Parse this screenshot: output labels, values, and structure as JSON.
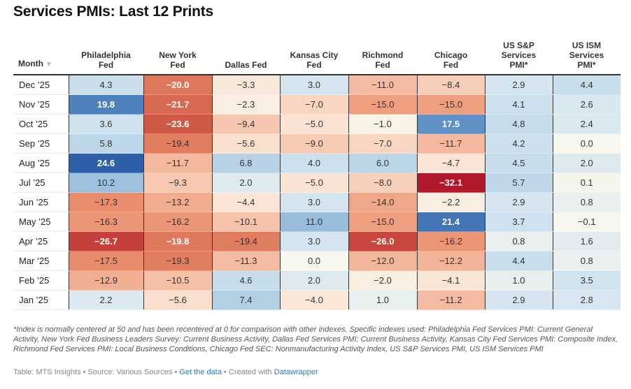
{
  "title": "Services PMIs: Last 12 Prints",
  "table": {
    "columns": [
      {
        "label": "Month",
        "sort_icon": "▼"
      },
      {
        "label": "Philadelphia Fed",
        "lines": [
          "Philadelphia",
          "Fed"
        ]
      },
      {
        "label": "New York Fed",
        "lines": [
          "New York",
          "Fed"
        ]
      },
      {
        "label": "Dallas Fed",
        "lines": [
          "Dallas Fed"
        ]
      },
      {
        "label": "Kansas City Fed",
        "lines": [
          "Kansas City",
          "Fed"
        ]
      },
      {
        "label": "Richmond Fed",
        "lines": [
          "Richmond",
          "Fed"
        ]
      },
      {
        "label": "Chicago Fed",
        "lines": [
          "Chicago",
          "Fed"
        ]
      },
      {
        "label": "US S&P Services PMI*",
        "lines": [
          "US S&P",
          "Services",
          "PMI*"
        ]
      },
      {
        "label": "US ISM Services PMI*",
        "lines": [
          "US ISM",
          "Services",
          "PMI*"
        ]
      }
    ]
  },
  "chart_data": {
    "type": "heatmap",
    "title": "Services PMIs: Last 12 Prints",
    "row_header": "Month",
    "sort": "Month descending",
    "columns": [
      "Philadelphia Fed",
      "New York Fed",
      "Dallas Fed",
      "Kansas City Fed",
      "Richmond Fed",
      "Chicago Fed",
      "US S&P Services PMI*",
      "US ISM Services PMI*"
    ],
    "rows": [
      "Dec ’25",
      "Nov ’25",
      "Oct ’25",
      "Sep ’25",
      "Aug ’25",
      "Jul ’25",
      "Jun ’25",
      "May ’25",
      "Apr ’25",
      "Mar ’25",
      "Feb ’25",
      "Jan ’25"
    ],
    "values": [
      [
        4.3,
        -20.0,
        -3.3,
        3.0,
        -11.0,
        -8.4,
        2.9,
        4.4
      ],
      [
        19.8,
        -21.7,
        -2.3,
        -7.0,
        -15.0,
        -15.0,
        4.1,
        2.6
      ],
      [
        3.6,
        -23.6,
        -9.4,
        -5.0,
        -1.0,
        17.5,
        4.8,
        2.4
      ],
      [
        5.8,
        -19.4,
        -5.6,
        -9.0,
        -7.0,
        -11.7,
        4.2,
        0.0
      ],
      [
        24.6,
        -11.7,
        6.8,
        4.0,
        6.0,
        -4.7,
        4.5,
        2.0
      ],
      [
        10.2,
        -9.3,
        2.0,
        -5.0,
        -8.0,
        -32.1,
        5.7,
        0.1
      ],
      [
        -17.3,
        -13.2,
        -4.4,
        3.0,
        -14.0,
        -2.2,
        2.9,
        0.8
      ],
      [
        -16.3,
        -16.2,
        -10.1,
        11.0,
        -15.0,
        21.4,
        3.7,
        -0.1
      ],
      [
        -26.7,
        -19.8,
        -19.4,
        3.0,
        -26.0,
        -16.2,
        0.8,
        1.6
      ],
      [
        -17.5,
        -19.3,
        -11.3,
        0.0,
        -12.0,
        -12.2,
        4.4,
        0.8
      ],
      [
        -12.9,
        -10.5,
        4.6,
        2.0,
        -2.0,
        -4.1,
        1.0,
        3.5
      ],
      [
        2.2,
        -5.6,
        7.4,
        -4.0,
        1.0,
        -11.2,
        2.9,
        2.8
      ]
    ],
    "color_scale": {
      "negative": "#b2182b",
      "neutral": "#f7f7ee",
      "positive": "#2f5fa7"
    },
    "value_format": "one decimal, minus sign"
  },
  "footer": {
    "notes": "*Index is normally centered at 50 and has been recentered at 0 for comparison with other indexes. Specific indexes used: Philadelphia Fed Services PMI: Current General Activity, New York Fed Business Leaders Survey: Current Business Activity, Dallas Fed Services PMI: Current Business Activity, Kansas City Fed Services PMI: Composite Index, Richmond Fed Services PMI: Local Business Conditions, Chicago Fed SEC: Nonmanufacturing Activity Index, US S&P Services PMI, US ISM Services PMI",
    "byline_prefix": "Table: MTS Insights • Source: Various Sources • ",
    "get_data_link": "Get the data",
    "created_with": " • Created with ",
    "datawrapper_link": "Datawrapper"
  }
}
